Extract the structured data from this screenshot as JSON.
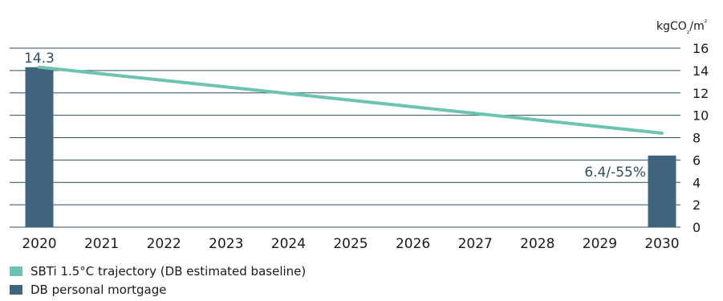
{
  "chart_data": {
    "type": "bar",
    "categories": [
      "2020",
      "2021",
      "2022",
      "2023",
      "2024",
      "2025",
      "2026",
      "2027",
      "2028",
      "2029",
      "2030"
    ],
    "ylabel": "kgCO₂/m²",
    "ylim": [
      0,
      16
    ],
    "yticks": [
      "0",
      "2",
      "4",
      "6",
      "8",
      "10",
      "12",
      "14",
      "16"
    ],
    "grid": true,
    "series": [
      {
        "name": "SBTi 1.5°C trajectory (DB estimated baseline)",
        "type": "line",
        "x": [
          "2020",
          "2030"
        ],
        "values": [
          14.3,
          8.4
        ],
        "color": "#6cc3b0"
      },
      {
        "name": "DB personal mortgage",
        "type": "bar",
        "x": [
          "2020",
          "2030"
        ],
        "values": [
          14.3,
          6.4
        ],
        "color": "#40637e"
      }
    ],
    "annotations": [
      {
        "x": "2020",
        "text": "14.3"
      },
      {
        "x": "2030",
        "text": "6.4/-55%"
      }
    ],
    "legend_position": "bottom-left"
  }
}
